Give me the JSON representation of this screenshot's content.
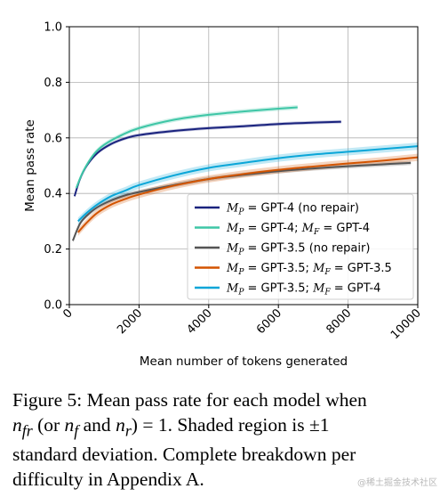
{
  "chart_data": {
    "type": "line",
    "xlabel": "Mean number of tokens generated",
    "ylabel": "Mean pass rate",
    "xlim": [
      0,
      10000
    ],
    "ylim": [
      0.0,
      1.0
    ],
    "x_ticks": [
      "0",
      "2000",
      "4000",
      "6000",
      "8000",
      "10000"
    ],
    "y_ticks": [
      "0.0",
      "0.2",
      "0.4",
      "0.6",
      "0.8",
      "1.0"
    ],
    "grid": true,
    "legend_position": "lower-right",
    "series": [
      {
        "name": "M_P = GPT-4 (no repair)",
        "legend": {
          "a": "M",
          "as": "P",
          "b": " = GPT-4 (no repair)",
          "c": "",
          "cs": "",
          "d": ""
        },
        "color": "#1a237e",
        "band": 0.006,
        "x": [
          150,
          300,
          500,
          800,
          1200,
          1600,
          2000,
          3000,
          4000,
          5000,
          6000,
          7000,
          7800
        ],
        "y": [
          0.39,
          0.45,
          0.5,
          0.545,
          0.578,
          0.598,
          0.61,
          0.625,
          0.635,
          0.642,
          0.65,
          0.655,
          0.658
        ]
      },
      {
        "name": "M_P = GPT-4; M_F = GPT-4",
        "legend": {
          "a": "M",
          "as": "P",
          "b": " = GPT-4; ",
          "c": "M",
          "cs": "F",
          "d": " = GPT-4"
        },
        "color": "#3ec6a6",
        "band": 0.008,
        "x": [
          200,
          400,
          700,
          1000,
          1500,
          2000,
          3000,
          4000,
          5000,
          6000,
          6550
        ],
        "y": [
          0.42,
          0.48,
          0.54,
          0.575,
          0.61,
          0.635,
          0.665,
          0.683,
          0.695,
          0.705,
          0.71
        ]
      },
      {
        "name": "M_P = GPT-3.5 (no repair)",
        "legend": {
          "a": "M",
          "as": "P",
          "b": " = GPT-3.5 (no repair)",
          "c": "",
          "cs": "",
          "d": ""
        },
        "color": "#555555",
        "band": 0.008,
        "x": [
          100,
          300,
          500,
          800,
          1200,
          1600,
          2000,
          3000,
          4000,
          5000,
          6000,
          7000,
          8000,
          9000,
          9800
        ],
        "y": [
          0.23,
          0.29,
          0.32,
          0.35,
          0.375,
          0.393,
          0.405,
          0.43,
          0.452,
          0.467,
          0.48,
          0.49,
          0.498,
          0.505,
          0.51
        ]
      },
      {
        "name": "M_P = GPT-3.5; M_F = GPT-3.5",
        "legend": {
          "a": "M",
          "as": "P",
          "b": " = GPT-3.5; ",
          "c": "M",
          "cs": "F",
          "d": " = GPT-3.5"
        },
        "color": "#d35400",
        "band": 0.013,
        "x": [
          250,
          500,
          800,
          1200,
          1600,
          2000,
          3000,
          4000,
          5000,
          6000,
          7000,
          8000,
          9000,
          10000
        ],
        "y": [
          0.26,
          0.295,
          0.33,
          0.36,
          0.38,
          0.396,
          0.428,
          0.452,
          0.47,
          0.485,
          0.497,
          0.508,
          0.518,
          0.53
        ]
      },
      {
        "name": "M_P = GPT-3.5; M_F = GPT-4",
        "legend": {
          "a": "M",
          "as": "P",
          "b": " = GPT-3.5; ",
          "c": "M",
          "cs": "F",
          "d": " = GPT-4"
        },
        "color": "#0aa6d8",
        "band": 0.013,
        "x": [
          250,
          500,
          800,
          1200,
          1600,
          2000,
          3000,
          4000,
          5000,
          6000,
          7000,
          8000,
          9000,
          10000
        ],
        "y": [
          0.3,
          0.33,
          0.36,
          0.39,
          0.41,
          0.43,
          0.465,
          0.492,
          0.51,
          0.527,
          0.54,
          0.55,
          0.56,
          0.57
        ]
      }
    ]
  },
  "caption": {
    "l1a": "Figure 5: Mean pass rate for each model when",
    "l2_n": "n",
    "l2_fr": "fr",
    "l2_mid1": " (or ",
    "l2_f": "f",
    "l2_and": " and ",
    "l2_r": "r",
    "l2_eq": ") = 1.  Shaded region is ±1",
    "l3": "standard deviation.  Complete breakdown per",
    "l4": "difficulty in Appendix A."
  },
  "watermark": "@稀土掘金技术社区"
}
